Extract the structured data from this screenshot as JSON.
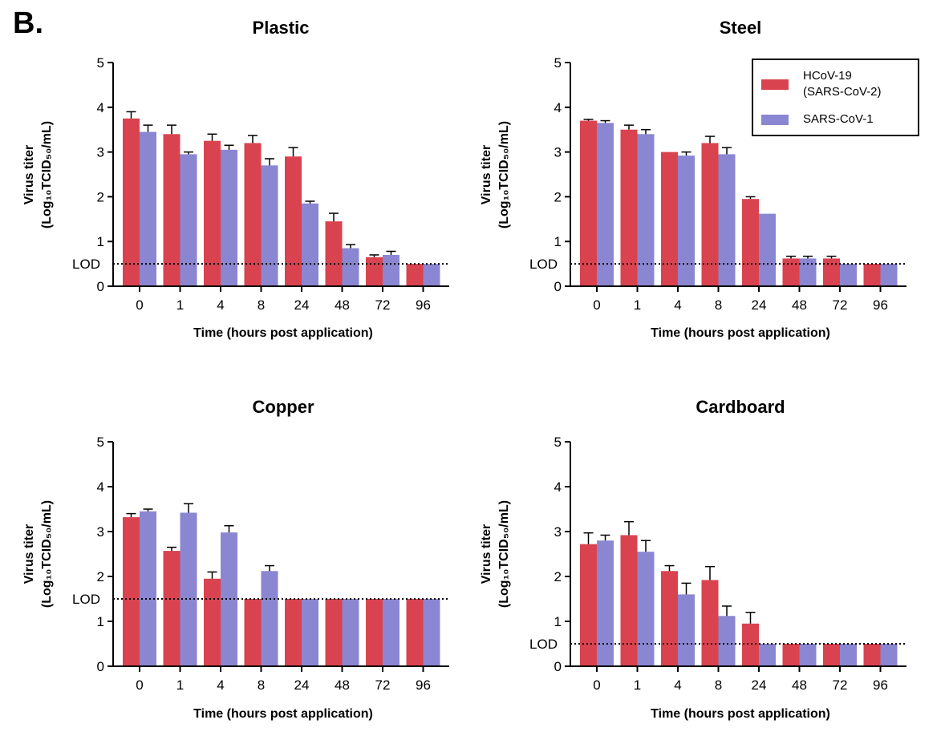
{
  "figure": {
    "panel_label": "B."
  },
  "legend": {
    "entries": [
      {
        "name": "HCoV-19",
        "line2": "(SARS-CoV-2)",
        "color": "#d9434f"
      },
      {
        "name": "SARS-CoV-1",
        "line2": "",
        "color": "#8b86d1"
      }
    ]
  },
  "chart_data": [
    {
      "type": "bar",
      "title": "Plastic",
      "categories": [
        "0",
        "1",
        "4",
        "8",
        "24",
        "48",
        "72",
        "96"
      ],
      "series": [
        {
          "name": "HCoV-19 (SARS-CoV-2)",
          "color": "#d9434f",
          "values": [
            3.75,
            3.4,
            3.25,
            3.2,
            2.9,
            1.45,
            0.65,
            0.5
          ],
          "errors": [
            0.15,
            0.2,
            0.15,
            0.17,
            0.2,
            0.18,
            0.05,
            0
          ]
        },
        {
          "name": "SARS-CoV-1",
          "color": "#8b86d1",
          "values": [
            3.45,
            2.95,
            3.05,
            2.7,
            1.85,
            0.85,
            0.7,
            0.5
          ],
          "errors": [
            0.15,
            0.05,
            0.1,
            0.15,
            0.05,
            0.08,
            0.08,
            0
          ]
        }
      ],
      "xlabel": "Time (hours post application)",
      "ylabel": "Virus titer",
      "ylabel2": "(Log₁₀TCID₅₀/mL)",
      "ylim": [
        0,
        5
      ],
      "yticks": [
        "0",
        "1",
        "2",
        "3",
        "4",
        "5"
      ],
      "lod": {
        "label": "LOD",
        "value": 0.5
      }
    },
    {
      "type": "bar",
      "title": "Steel",
      "categories": [
        "0",
        "1",
        "4",
        "8",
        "24",
        "48",
        "72",
        "96"
      ],
      "series": [
        {
          "name": "HCoV-19 (SARS-CoV-2)",
          "color": "#d9434f",
          "values": [
            3.7,
            3.5,
            3.0,
            3.2,
            1.95,
            0.62,
            0.62,
            0.5
          ],
          "errors": [
            0.03,
            0.1,
            0,
            0.15,
            0.05,
            0.05,
            0.05,
            0
          ]
        },
        {
          "name": "SARS-CoV-1",
          "color": "#8b86d1",
          "values": [
            3.65,
            3.4,
            2.92,
            2.95,
            1.62,
            0.62,
            0.5,
            0.5
          ],
          "errors": [
            0.05,
            0.1,
            0.08,
            0.15,
            0,
            0.05,
            0,
            0
          ]
        }
      ],
      "xlabel": "Time (hours post application)",
      "ylabel": "Virus titer",
      "ylabel2": "(Log₁₀TCID₅₀/mL)",
      "ylim": [
        0,
        5
      ],
      "yticks": [
        "0",
        "1",
        "2",
        "3",
        "4",
        "5"
      ],
      "lod": {
        "label": "LOD",
        "value": 0.5
      }
    },
    {
      "type": "bar",
      "title": "Copper",
      "categories": [
        "0",
        "1",
        "4",
        "8",
        "24",
        "48",
        "72",
        "96"
      ],
      "series": [
        {
          "name": "HCoV-19 (SARS-CoV-2)",
          "color": "#d9434f",
          "values": [
            3.32,
            2.57,
            1.95,
            1.5,
            1.5,
            1.5,
            1.5,
            1.5
          ],
          "errors": [
            0.08,
            0.08,
            0.15,
            0,
            0,
            0,
            0,
            0
          ]
        },
        {
          "name": "SARS-CoV-1",
          "color": "#8b86d1",
          "values": [
            3.45,
            3.42,
            2.98,
            2.12,
            1.5,
            1.5,
            1.5,
            1.5
          ],
          "errors": [
            0.05,
            0.2,
            0.15,
            0.12,
            0,
            0,
            0,
            0
          ]
        }
      ],
      "xlabel": "Time (hours post application)",
      "ylabel": "Virus titer",
      "ylabel2": "(Log₁₀TCID₅₀/mL)",
      "ylim": [
        0,
        5
      ],
      "yticks": [
        "0",
        "1",
        "2",
        "3",
        "4",
        "5"
      ],
      "lod": {
        "label": "LOD",
        "value": 1.5
      }
    },
    {
      "type": "bar",
      "title": "Cardboard",
      "categories": [
        "0",
        "1",
        "4",
        "8",
        "24",
        "48",
        "72",
        "96"
      ],
      "series": [
        {
          "name": "HCoV-19 (SARS-CoV-2)",
          "color": "#d9434f",
          "values": [
            2.72,
            2.92,
            2.12,
            1.92,
            0.95,
            0.5,
            0.5,
            0.5
          ],
          "errors": [
            0.25,
            0.3,
            0.12,
            0.3,
            0.25,
            0,
            0,
            0
          ]
        },
        {
          "name": "SARS-CoV-1",
          "color": "#8b86d1",
          "values": [
            2.8,
            2.55,
            1.6,
            1.12,
            0.5,
            0.5,
            0.5,
            0.5
          ],
          "errors": [
            0.12,
            0.25,
            0.25,
            0.22,
            0,
            0,
            0,
            0
          ]
        }
      ],
      "xlabel": "Time (hours post application)",
      "ylabel": "Virus titer",
      "ylabel2": "(Log₁₀TCID₅₀/mL)",
      "ylim": [
        0,
        5
      ],
      "yticks": [
        "0",
        "1",
        "2",
        "3",
        "4",
        "5"
      ],
      "lod": {
        "label": "LOD",
        "value": 0.5
      }
    }
  ]
}
